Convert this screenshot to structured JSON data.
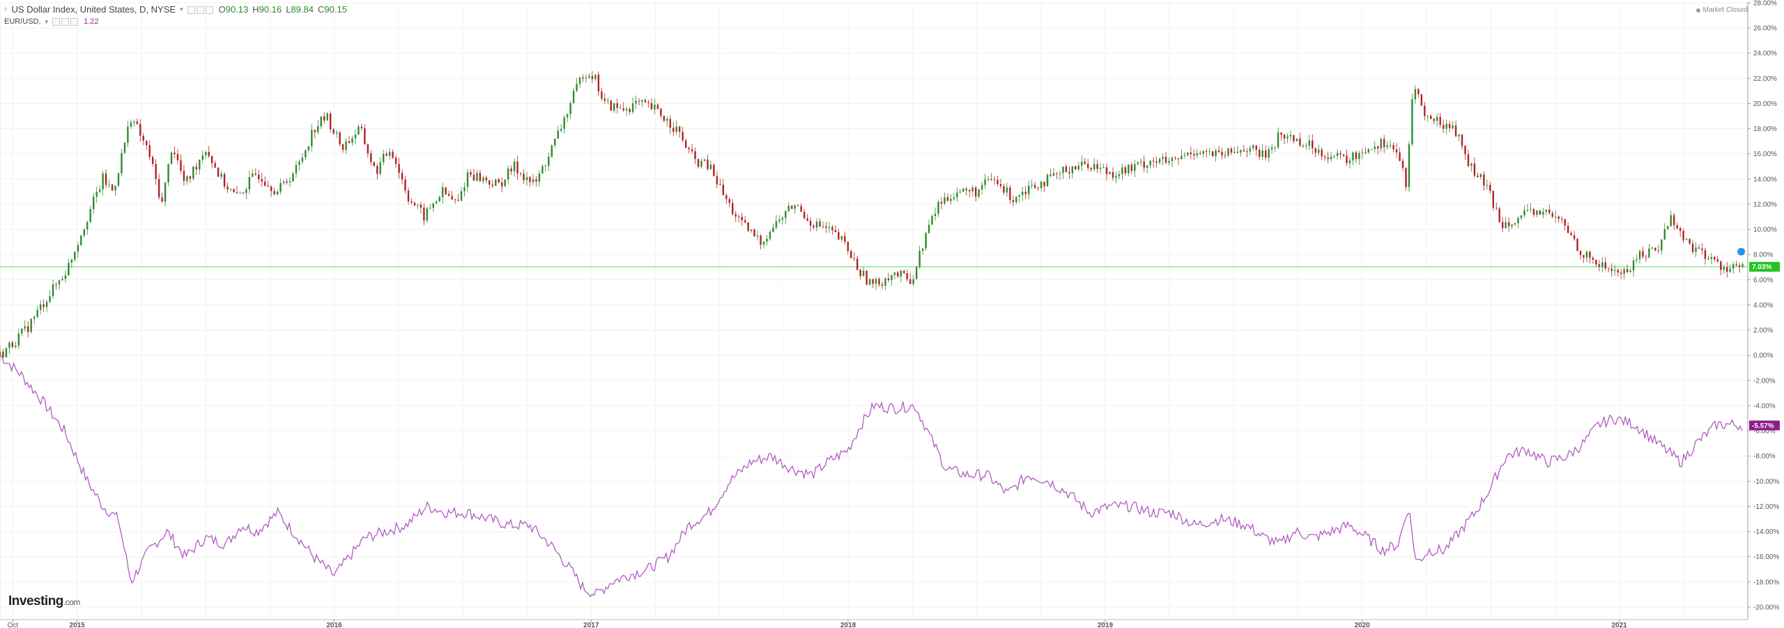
{
  "header": {
    "title": "US Dollar Index, United States, D, NYSE",
    "ohlc": [
      {
        "k": "O",
        "v": "90.13"
      },
      {
        "k": "H",
        "v": "90.16"
      },
      {
        "k": "L",
        "v": "89.84"
      },
      {
        "k": "C",
        "v": "90.15"
      }
    ],
    "series2_name": "EUR/USD,",
    "series2_value": "1.22",
    "status": "Market Closed"
  },
  "logo": {
    "brand": "Investing",
    "domain": ".com"
  },
  "colors": {
    "up": "#2e8b2e",
    "down": "#b22222",
    "eur": "#b05cc0",
    "baseline": "#7ee07e",
    "dxy_badge": "#22c322",
    "eur_badge": "#8e1c8e"
  },
  "chart_data": {
    "type": "line",
    "y_axis": {
      "min": -21,
      "max": 28,
      "unit": "%",
      "ticks": [
        "28.00%",
        "26.00%",
        "24.00%",
        "22.00%",
        "20.00%",
        "18.00%",
        "16.00%",
        "14.00%",
        "12.00%",
        "10.00%",
        "8.00%",
        "6.00%",
        "4.00%",
        "2.00%",
        "0.00%",
        "-2.00%",
        "-4.00%",
        "-6.00%",
        "-8.00%",
        "-10.00%",
        "-12.00%",
        "-14.00%",
        "-16.00%",
        "-18.00%",
        "-20.00%"
      ],
      "tick_values": [
        28,
        26,
        24,
        22,
        20,
        18,
        16,
        14,
        12,
        10,
        8,
        6,
        4,
        2,
        0,
        -2,
        -4,
        -6,
        -8,
        -10,
        -12,
        -14,
        -16,
        -18,
        -20
      ]
    },
    "x_axis": {
      "labels": [
        "Oct",
        "2015",
        "2016",
        "2017",
        "2018",
        "2019",
        "2020",
        "2021"
      ],
      "label_pos": [
        2014.75,
        2015.0,
        2016.0,
        2017.0,
        2018.0,
        2019.0,
        2020.0,
        2021.0
      ],
      "start": 2014.7,
      "end": 2021.5
    },
    "series": [
      {
        "name": "US Dollar Index",
        "style": "candlestick",
        "last_label": "7.03%",
        "last_value": 7.03,
        "points": [
          [
            2014.7,
            0.0
          ],
          [
            2014.8,
            2.0
          ],
          [
            2014.88,
            4.5
          ],
          [
            2014.96,
            6.8
          ],
          [
            2015.04,
            11.0
          ],
          [
            2015.1,
            14.0
          ],
          [
            2015.14,
            13.0
          ],
          [
            2015.21,
            19.0
          ],
          [
            2015.28,
            16.0
          ],
          [
            2015.33,
            12.0
          ],
          [
            2015.37,
            16.8
          ],
          [
            2015.42,
            13.5
          ],
          [
            2015.5,
            16.5
          ],
          [
            2015.56,
            14.0
          ],
          [
            2015.62,
            12.5
          ],
          [
            2015.7,
            14.5
          ],
          [
            2015.78,
            13.0
          ],
          [
            2015.86,
            15.0
          ],
          [
            2015.92,
            18.0
          ],
          [
            2015.97,
            19.0
          ],
          [
            2016.03,
            16.5
          ],
          [
            2016.1,
            18.0
          ],
          [
            2016.16,
            14.5
          ],
          [
            2016.22,
            16.5
          ],
          [
            2016.29,
            12.5
          ],
          [
            2016.35,
            11.0
          ],
          [
            2016.42,
            13.0
          ],
          [
            2016.48,
            12.0
          ],
          [
            2016.52,
            14.5
          ],
          [
            2016.58,
            14.0
          ],
          [
            2016.64,
            13.5
          ],
          [
            2016.7,
            15.0
          ],
          [
            2016.78,
            13.5
          ],
          [
            2016.86,
            17.0
          ],
          [
            2016.94,
            21.0
          ],
          [
            2016.97,
            22.5
          ],
          [
            2017.01,
            22.3
          ],
          [
            2017.05,
            20.0
          ],
          [
            2017.12,
            19.5
          ],
          [
            2017.18,
            20.0
          ],
          [
            2017.25,
            19.5
          ],
          [
            2017.33,
            18.0
          ],
          [
            2017.4,
            15.5
          ],
          [
            2017.46,
            15.0
          ],
          [
            2017.52,
            12.5
          ],
          [
            2017.58,
            10.5
          ],
          [
            2017.66,
            9.0
          ],
          [
            2017.72,
            10.5
          ],
          [
            2017.79,
            12.0
          ],
          [
            2017.86,
            10.5
          ],
          [
            2017.92,
            10.0
          ],
          [
            2017.98,
            9.0
          ],
          [
            2018.05,
            6.5
          ],
          [
            2018.1,
            5.5
          ],
          [
            2018.17,
            6.5
          ],
          [
            2018.25,
            6.0
          ],
          [
            2018.3,
            9.5
          ],
          [
            2018.35,
            12.0
          ],
          [
            2018.42,
            13.0
          ],
          [
            2018.5,
            13.0
          ],
          [
            2018.56,
            14.0
          ],
          [
            2018.64,
            12.5
          ],
          [
            2018.71,
            13.5
          ],
          [
            2018.79,
            14.0
          ],
          [
            2018.87,
            15.0
          ],
          [
            2018.94,
            15.2
          ],
          [
            2019.02,
            14.5
          ],
          [
            2019.1,
            14.8
          ],
          [
            2019.18,
            15.5
          ],
          [
            2019.26,
            15.3
          ],
          [
            2019.35,
            16.3
          ],
          [
            2019.45,
            15.8
          ],
          [
            2019.55,
            16.5
          ],
          [
            2019.62,
            15.8
          ],
          [
            2019.68,
            17.5
          ],
          [
            2019.74,
            17.2
          ],
          [
            2019.81,
            16.5
          ],
          [
            2019.88,
            15.8
          ],
          [
            2019.95,
            15.5
          ],
          [
            2020.02,
            16.5
          ],
          [
            2020.1,
            17.0
          ],
          [
            2020.15,
            15.5
          ],
          [
            2020.17,
            13.0
          ],
          [
            2020.2,
            22.0
          ],
          [
            2020.24,
            19.0
          ],
          [
            2020.3,
            18.5
          ],
          [
            2020.36,
            18.0
          ],
          [
            2020.42,
            15.0
          ],
          [
            2020.48,
            13.5
          ],
          [
            2020.54,
            10.5
          ],
          [
            2020.62,
            11.0
          ],
          [
            2020.7,
            11.5
          ],
          [
            2020.78,
            10.5
          ],
          [
            2020.86,
            8.0
          ],
          [
            2020.94,
            7.0
          ],
          [
            2021.02,
            6.5
          ],
          [
            2021.08,
            8.0
          ],
          [
            2021.15,
            8.5
          ],
          [
            2021.2,
            11.0
          ],
          [
            2021.26,
            9.0
          ],
          [
            2021.33,
            8.0
          ],
          [
            2021.4,
            7.0
          ],
          [
            2021.48,
            7.03
          ]
        ]
      },
      {
        "name": "EUR/USD",
        "style": "line",
        "last_label": "-5.57%",
        "last_value": -5.57,
        "points": [
          [
            2014.7,
            0.0
          ],
          [
            2014.78,
            -1.5
          ],
          [
            2014.86,
            -3.5
          ],
          [
            2014.95,
            -6.0
          ],
          [
            2015.04,
            -10.0
          ],
          [
            2015.1,
            -12.0
          ],
          [
            2015.16,
            -13.0
          ],
          [
            2015.21,
            -18.0
          ],
          [
            2015.28,
            -15.5
          ],
          [
            2015.35,
            -14.0
          ],
          [
            2015.42,
            -16.0
          ],
          [
            2015.5,
            -14.5
          ],
          [
            2015.58,
            -15.0
          ],
          [
            2015.64,
            -13.5
          ],
          [
            2015.7,
            -14.0
          ],
          [
            2015.78,
            -12.5
          ],
          [
            2015.86,
            -14.5
          ],
          [
            2015.92,
            -16.0
          ],
          [
            2016.0,
            -17.5
          ],
          [
            2016.06,
            -16.0
          ],
          [
            2016.12,
            -14.5
          ],
          [
            2016.2,
            -14.0
          ],
          [
            2016.28,
            -13.5
          ],
          [
            2016.36,
            -12.0
          ],
          [
            2016.44,
            -12.5
          ],
          [
            2016.52,
            -12.5
          ],
          [
            2016.6,
            -13.0
          ],
          [
            2016.68,
            -13.5
          ],
          [
            2016.76,
            -13.5
          ],
          [
            2016.84,
            -15.0
          ],
          [
            2016.92,
            -17.0
          ],
          [
            2016.97,
            -18.5
          ],
          [
            2017.02,
            -19.0
          ],
          [
            2017.08,
            -18.0
          ],
          [
            2017.14,
            -17.5
          ],
          [
            2017.22,
            -17.0
          ],
          [
            2017.3,
            -16.0
          ],
          [
            2017.38,
            -13.5
          ],
          [
            2017.46,
            -12.5
          ],
          [
            2017.54,
            -10.0
          ],
          [
            2017.62,
            -8.5
          ],
          [
            2017.7,
            -8.0
          ],
          [
            2017.78,
            -9.0
          ],
          [
            2017.86,
            -9.5
          ],
          [
            2017.92,
            -8.5
          ],
          [
            2018.0,
            -7.5
          ],
          [
            2018.05,
            -5.5
          ],
          [
            2018.1,
            -4.0
          ],
          [
            2018.18,
            -4.2
          ],
          [
            2018.26,
            -4.0
          ],
          [
            2018.32,
            -6.5
          ],
          [
            2018.38,
            -9.0
          ],
          [
            2018.46,
            -9.5
          ],
          [
            2018.54,
            -9.5
          ],
          [
            2018.62,
            -11.0
          ],
          [
            2018.7,
            -9.5
          ],
          [
            2018.78,
            -10.0
          ],
          [
            2018.86,
            -11.0
          ],
          [
            2018.94,
            -12.5
          ],
          [
            2019.02,
            -12.0
          ],
          [
            2019.1,
            -12.0
          ],
          [
            2019.18,
            -12.5
          ],
          [
            2019.26,
            -12.5
          ],
          [
            2019.35,
            -13.5
          ],
          [
            2019.45,
            -13.0
          ],
          [
            2019.55,
            -13.5
          ],
          [
            2019.62,
            -14.5
          ],
          [
            2019.68,
            -15.0
          ],
          [
            2019.74,
            -14.0
          ],
          [
            2019.81,
            -14.5
          ],
          [
            2019.88,
            -14.0
          ],
          [
            2019.95,
            -13.5
          ],
          [
            2020.02,
            -14.5
          ],
          [
            2020.08,
            -15.5
          ],
          [
            2020.14,
            -15.0
          ],
          [
            2020.18,
            -12.0
          ],
          [
            2020.21,
            -16.5
          ],
          [
            2020.26,
            -15.5
          ],
          [
            2020.32,
            -15.5
          ],
          [
            2020.38,
            -14.0
          ],
          [
            2020.44,
            -12.5
          ],
          [
            2020.5,
            -10.5
          ],
          [
            2020.56,
            -8.0
          ],
          [
            2020.64,
            -7.5
          ],
          [
            2020.72,
            -8.5
          ],
          [
            2020.8,
            -8.0
          ],
          [
            2020.86,
            -7.0
          ],
          [
            2020.92,
            -5.5
          ],
          [
            2020.98,
            -5.0
          ],
          [
            2021.06,
            -5.5
          ],
          [
            2021.12,
            -6.5
          ],
          [
            2021.18,
            -7.5
          ],
          [
            2021.24,
            -8.5
          ],
          [
            2021.3,
            -7.0
          ],
          [
            2021.38,
            -5.5
          ],
          [
            2021.44,
            -5.5
          ],
          [
            2021.48,
            -5.57
          ]
        ]
      }
    ],
    "baseline_value": 7.03,
    "grid": true
  }
}
